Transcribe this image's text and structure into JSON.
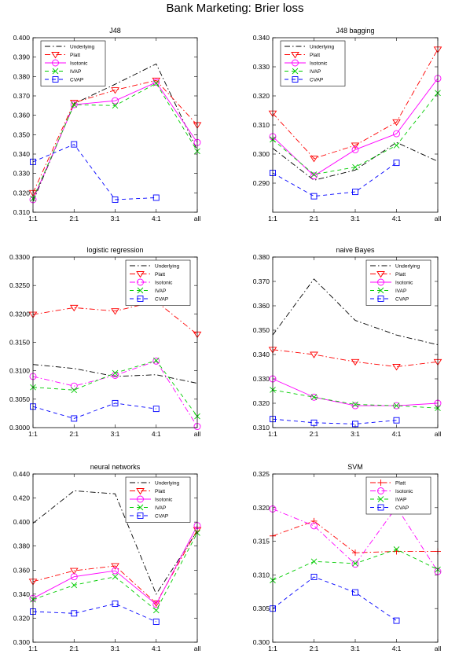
{
  "title": "Bank Marketing: Brier loss",
  "chart_data": [
    {
      "type": "line",
      "title": "J48",
      "categories": [
        "1:1",
        "2:1",
        "3:1",
        "4:1",
        "all"
      ],
      "ylim": [
        0.31,
        0.4
      ],
      "yticks": [
        "0.310",
        "0.320",
        "0.330",
        "0.340",
        "0.350",
        "0.360",
        "0.370",
        "0.380",
        "0.390",
        "0.400"
      ],
      "grid": false,
      "legend_position": "top-left",
      "series": [
        {
          "name": "Underlying",
          "color": "#000000",
          "dash": "dashdot",
          "marker": "none",
          "values": [
            0.3155,
            0.366,
            0.376,
            0.3865,
            0.342
          ]
        },
        {
          "name": "Platt",
          "color": "#ff0000",
          "dash": "dashdot",
          "marker": "triangle-down",
          "values": [
            0.32,
            0.3665,
            0.373,
            0.378,
            0.355
          ]
        },
        {
          "name": "Isotonic",
          "color": "#ff00ff",
          "dash": "solid",
          "marker": "circle",
          "values": [
            0.3165,
            0.3655,
            0.3675,
            0.377,
            0.346
          ]
        },
        {
          "name": "IVAP",
          "color": "#00cc00",
          "dash": "dash",
          "marker": "x",
          "values": [
            0.317,
            0.3655,
            0.365,
            0.3765,
            0.3415
          ]
        },
        {
          "name": "CVAP",
          "color": "#0000ff",
          "dash": "dash",
          "marker": "square",
          "values": [
            0.336,
            0.345,
            0.3165,
            0.3175,
            null
          ]
        }
      ]
    },
    {
      "type": "line",
      "title": "J48 bagging",
      "categories": [
        "1:1",
        "2:1",
        "3:1",
        "4:1",
        "all"
      ],
      "ylim": [
        0.28,
        0.34
      ],
      "yticks": [
        "0.290",
        "0.300",
        "0.310",
        "0.320",
        "0.330",
        "0.340"
      ],
      "grid": false,
      "legend_position": "top-left",
      "series": [
        {
          "name": "Underlying",
          "color": "#000000",
          "dash": "dashdot",
          "marker": "none",
          "values": [
            0.302,
            0.291,
            0.2945,
            0.304,
            0.2975
          ]
        },
        {
          "name": "Platt",
          "color": "#ff0000",
          "dash": "dashdot",
          "marker": "triangle-down",
          "values": [
            0.314,
            0.2985,
            0.303,
            0.311,
            0.336
          ]
        },
        {
          "name": "Isotonic",
          "color": "#ff00ff",
          "dash": "solid",
          "marker": "circle",
          "values": [
            0.306,
            0.2925,
            0.3015,
            0.307,
            0.326
          ]
        },
        {
          "name": "IVAP",
          "color": "#00cc00",
          "dash": "dash",
          "marker": "x",
          "values": [
            0.305,
            0.293,
            0.2955,
            0.303,
            0.321
          ]
        },
        {
          "name": "CVAP",
          "color": "#0000ff",
          "dash": "dash",
          "marker": "square",
          "values": [
            0.2935,
            0.2855,
            0.287,
            0.297,
            null
          ]
        }
      ]
    },
    {
      "type": "line",
      "title": "logistic regression",
      "categories": [
        "1:1",
        "2:1",
        "3:1",
        "4:1",
        "all"
      ],
      "ylim": [
        0.3,
        0.33
      ],
      "yticks": [
        "0.3000",
        "0.3050",
        "0.3100",
        "0.3150",
        "0.3200",
        "0.3250",
        "0.3300"
      ],
      "grid": false,
      "legend_position": "top-right",
      "series": [
        {
          "name": "Underlying",
          "color": "#000000",
          "dash": "dashdot",
          "marker": "none",
          "values": [
            0.3111,
            0.3104,
            0.309,
            0.3093,
            0.3078
          ]
        },
        {
          "name": "Platt",
          "color": "#ff0000",
          "dash": "dashdot",
          "marker": "triangle-down",
          "values": [
            0.3199,
            0.3211,
            0.3205,
            0.3222,
            0.3164
          ]
        },
        {
          "name": "Isotonic",
          "color": "#ff00ff",
          "dash": "dashdot",
          "marker": "circle",
          "values": [
            0.309,
            0.3073,
            0.3092,
            0.3117,
            0.3002
          ]
        },
        {
          "name": "IVAP",
          "color": "#00cc00",
          "dash": "dash",
          "marker": "x",
          "values": [
            0.3071,
            0.3066,
            0.3096,
            0.3118,
            0.302
          ]
        },
        {
          "name": "CVAP",
          "color": "#0000ff",
          "dash": "dash",
          "marker": "square",
          "values": [
            0.3037,
            0.3016,
            0.3043,
            0.3033,
            null
          ]
        }
      ]
    },
    {
      "type": "line",
      "title": "naive Bayes",
      "categories": [
        "1:1",
        "2:1",
        "3:1",
        "4:1",
        "all"
      ],
      "ylim": [
        0.31,
        0.38
      ],
      "yticks": [
        "0.310",
        "0.320",
        "0.330",
        "0.340",
        "0.350",
        "0.360",
        "0.370",
        "0.380"
      ],
      "grid": false,
      "legend_position": "top-right",
      "series": [
        {
          "name": "Underlying",
          "color": "#000000",
          "dash": "dashdot",
          "marker": "none",
          "values": [
            0.348,
            0.371,
            0.354,
            0.348,
            0.344
          ]
        },
        {
          "name": "Platt",
          "color": "#ff0000",
          "dash": "dashdot",
          "marker": "triangle-down",
          "values": [
            0.342,
            0.34,
            0.337,
            0.335,
            0.337
          ]
        },
        {
          "name": "Isotonic",
          "color": "#ff00ff",
          "dash": "solid",
          "marker": "circle",
          "values": [
            0.33,
            0.3225,
            0.319,
            0.319,
            0.32
          ]
        },
        {
          "name": "IVAP",
          "color": "#00cc00",
          "dash": "dash",
          "marker": "x",
          "values": [
            0.3255,
            0.3225,
            0.3195,
            0.319,
            0.318
          ]
        },
        {
          "name": "CVAP",
          "color": "#0000ff",
          "dash": "dash",
          "marker": "square",
          "values": [
            0.3135,
            0.312,
            0.3115,
            0.313,
            null
          ]
        }
      ]
    },
    {
      "type": "line",
      "title": "neural networks",
      "categories": [
        "1:1",
        "2:1",
        "3:1",
        "4:1",
        "all"
      ],
      "ylim": [
        0.3,
        0.44
      ],
      "yticks": [
        "0.300",
        "0.320",
        "0.340",
        "0.360",
        "0.380",
        "0.400",
        "0.420",
        "0.440"
      ],
      "grid": false,
      "legend_position": "top-right",
      "series": [
        {
          "name": "Underlying",
          "color": "#000000",
          "dash": "dashdot",
          "marker": "none",
          "values": [
            0.399,
            0.426,
            0.4235,
            0.34,
            0.3925
          ]
        },
        {
          "name": "Platt",
          "color": "#ff0000",
          "dash": "dashdot",
          "marker": "triangle-down",
          "values": [
            0.3505,
            0.3595,
            0.3635,
            0.3325,
            0.3935
          ]
        },
        {
          "name": "Isotonic",
          "color": "#ff00ff",
          "dash": "solid",
          "marker": "circle",
          "values": [
            0.3365,
            0.3545,
            0.3595,
            0.3315,
            0.397
          ]
        },
        {
          "name": "IVAP",
          "color": "#00cc00",
          "dash": "dash",
          "marker": "x",
          "values": [
            0.3355,
            0.3475,
            0.3545,
            0.3265,
            0.391
          ]
        },
        {
          "name": "CVAP",
          "color": "#0000ff",
          "dash": "dash",
          "marker": "square",
          "values": [
            0.3255,
            0.324,
            0.332,
            0.317,
            null
          ]
        }
      ]
    },
    {
      "type": "line",
      "title": "SVM",
      "categories": [
        "1:1",
        "2:1",
        "3:1",
        "4:1",
        "all"
      ],
      "ylim": [
        0.3,
        0.325
      ],
      "yticks": [
        "0.300",
        "0.305",
        "0.310",
        "0.315",
        "0.320",
        "0.325"
      ],
      "grid": false,
      "legend_position": "top-right",
      "series": [
        {
          "name": "Platt",
          "color": "#ff0000",
          "dash": "dashdot",
          "marker": "plus",
          "values": [
            0.3158,
            0.318,
            0.3133,
            0.3135,
            0.3135
          ]
        },
        {
          "name": "Isotonic",
          "color": "#ff00ff",
          "dash": "dashdot",
          "marker": "circle",
          "values": [
            0.3198,
            0.3173,
            0.3116,
            0.3201,
            0.3105
          ]
        },
        {
          "name": "IVAP",
          "color": "#00cc00",
          "dash": "dash",
          "marker": "x",
          "values": [
            0.3092,
            0.312,
            0.3117,
            0.3138,
            0.3108
          ]
        },
        {
          "name": "CVAP",
          "color": "#0000ff",
          "dash": "dash",
          "marker": "square",
          "values": [
            0.305,
            0.3097,
            0.3074,
            0.3032,
            null
          ]
        }
      ]
    }
  ]
}
